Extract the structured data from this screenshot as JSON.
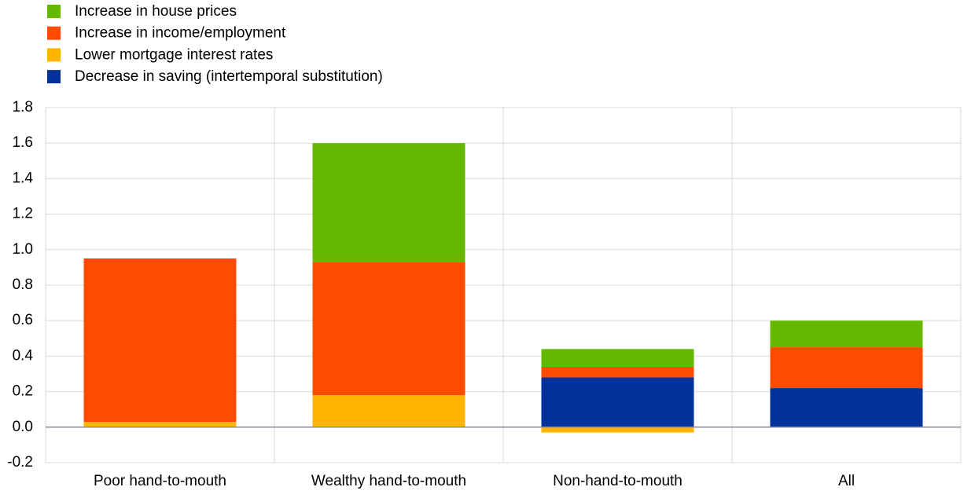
{
  "chart_data": {
    "type": "stacked_bar",
    "categories": [
      "Poor hand-to-mouth",
      "Wealthy hand-to-mouth",
      "Non-hand-to-mouth",
      "All"
    ],
    "series": [
      {
        "name": "Increase in house prices",
        "color": "#65b800",
        "values": [
          0,
          0.67,
          0.1,
          0.15
        ]
      },
      {
        "name": "Increase in income/employment",
        "color": "#ff4b00",
        "values": [
          0.92,
          0.75,
          0.06,
          0.23
        ]
      },
      {
        "name": "Lower mortgage interest rates",
        "color": "#ffb400",
        "values": [
          0.03,
          0.18,
          -0.03,
          0
        ]
      },
      {
        "name": "Decrease in saving (intertemporal substitution)",
        "color": "#003299",
        "values": [
          0,
          0,
          0.28,
          0.22
        ]
      }
    ],
    "ylim": [
      -0.2,
      1.8
    ],
    "yticks": [
      -0.2,
      {
        "value": 0,
        "label": "0.0"
      },
      0.2,
      0.4,
      0.6,
      0.8,
      {
        "value": 1,
        "label": "1.0"
      },
      1.2,
      1.4,
      1.6,
      1.8
    ],
    "grid": true
  }
}
